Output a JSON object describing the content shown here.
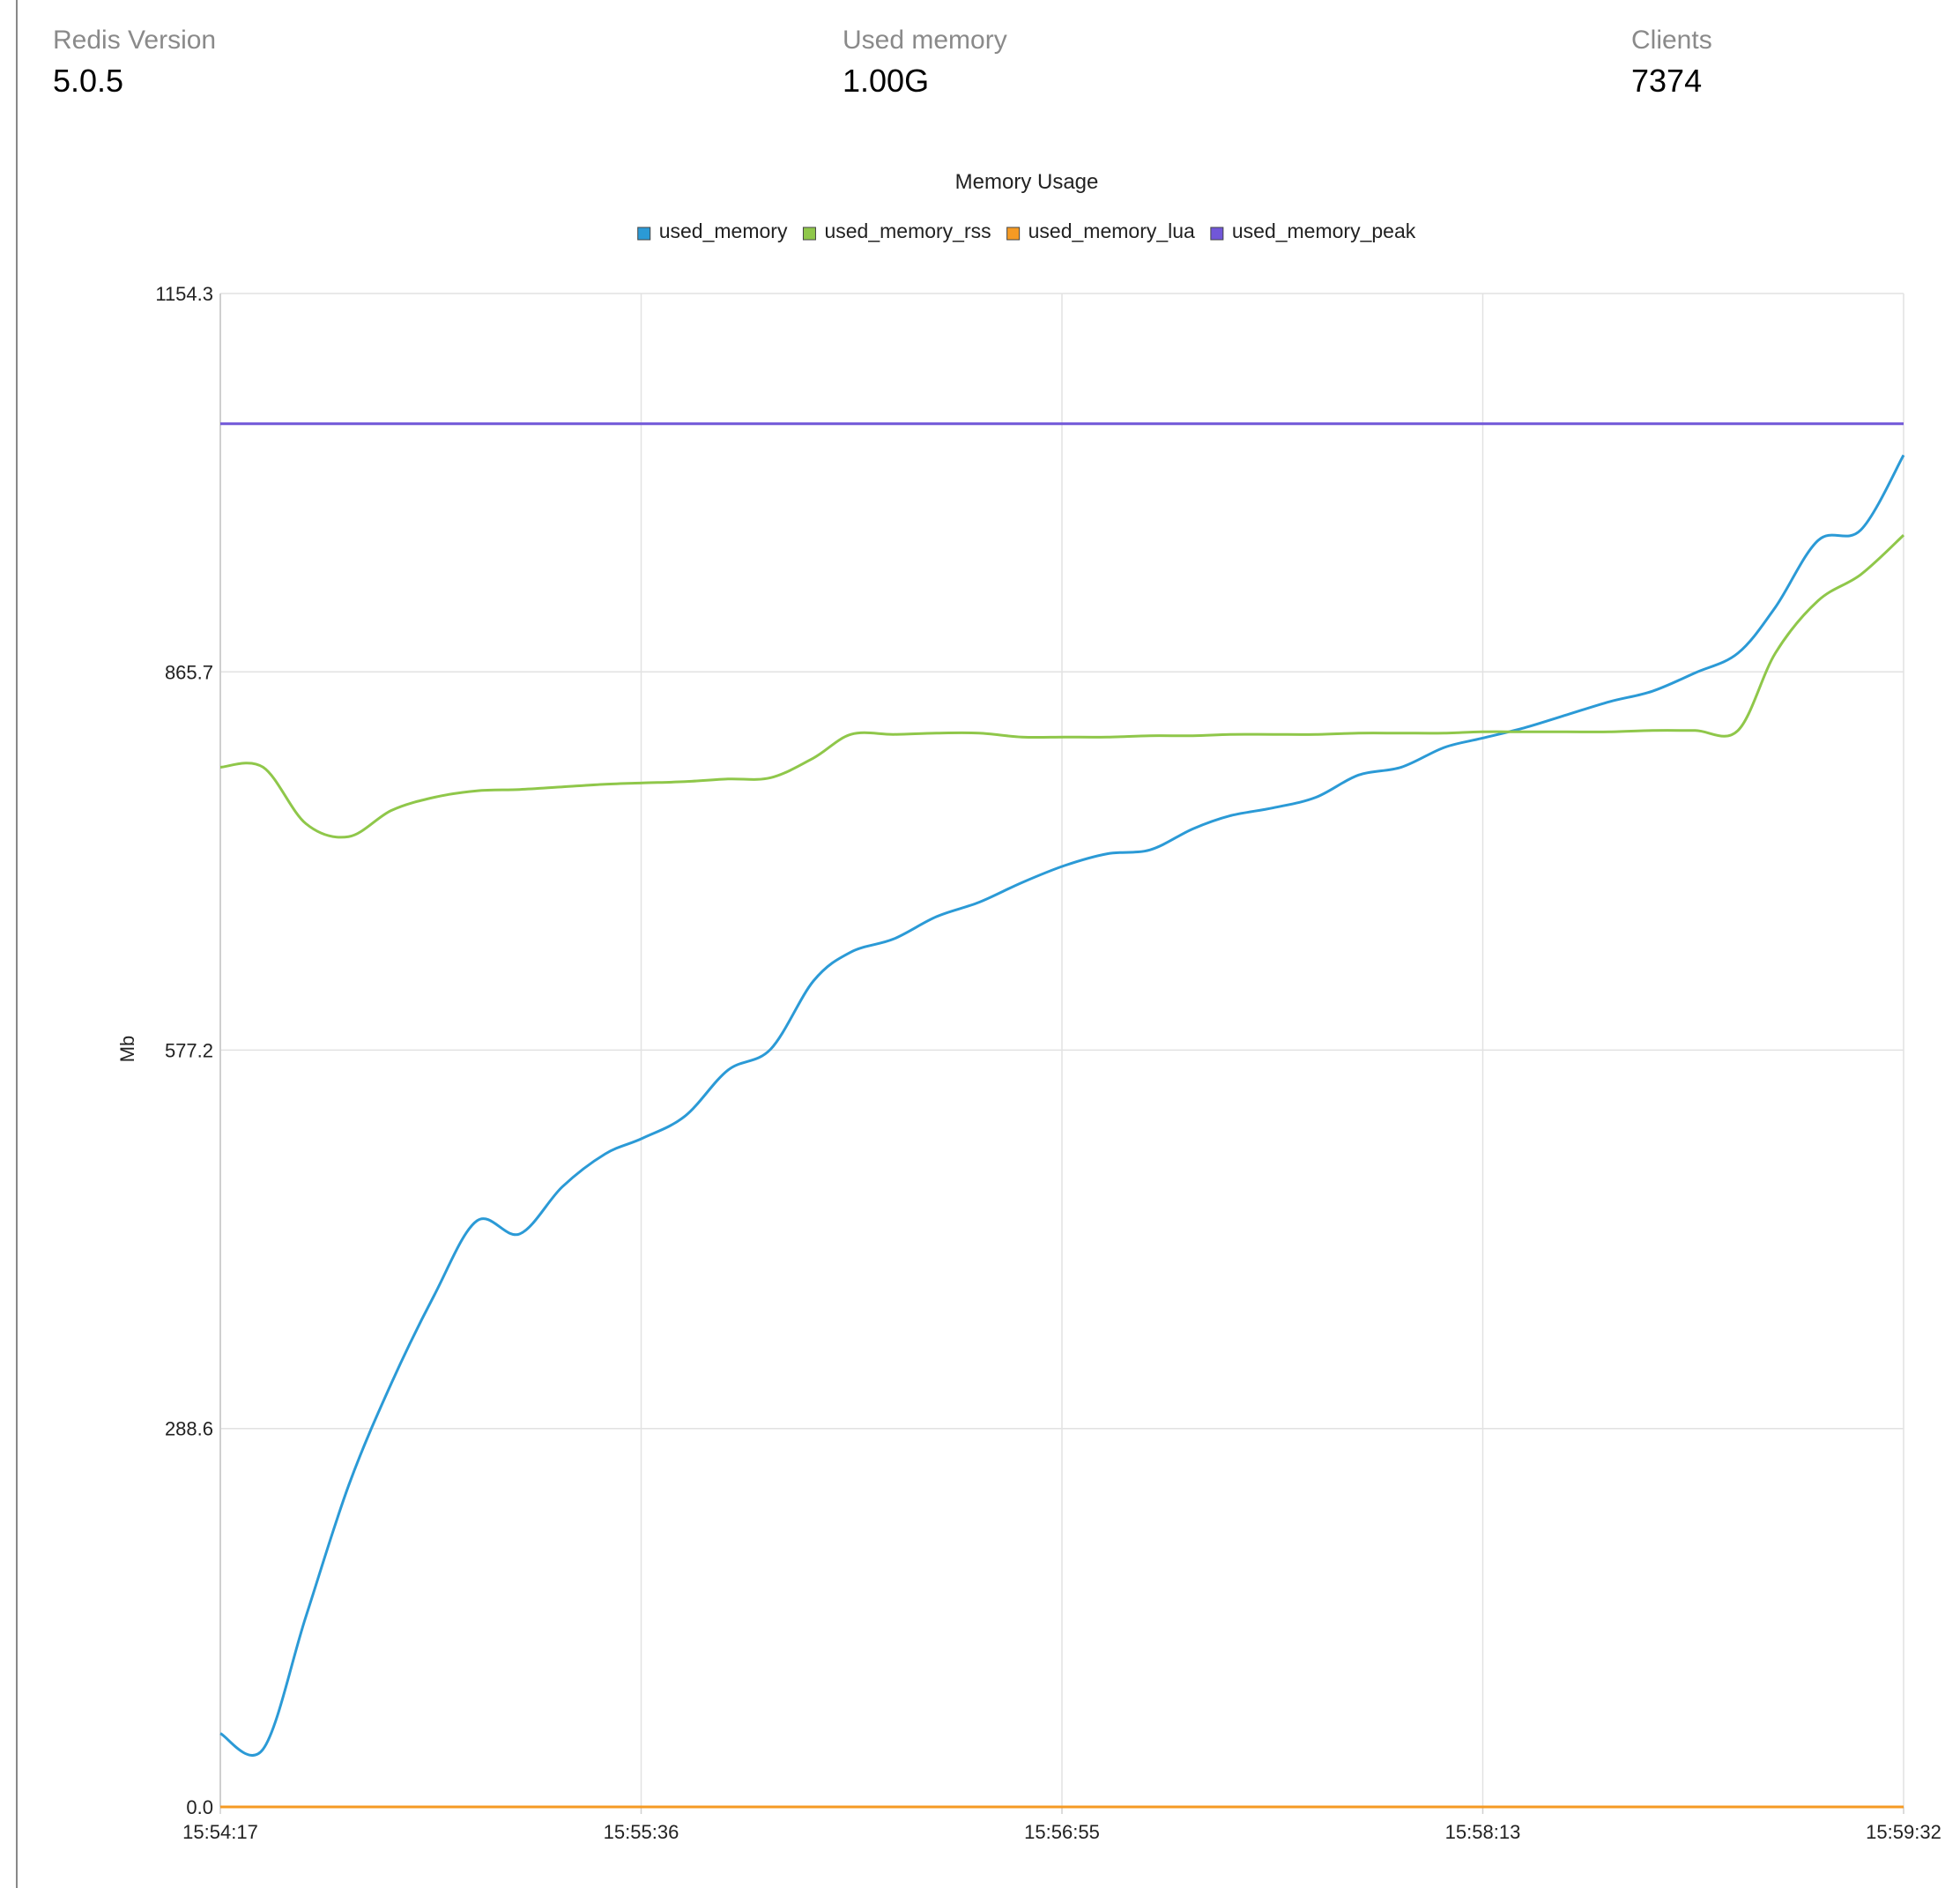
{
  "stats": [
    {
      "label": "Redis Version",
      "value": "5.0.5"
    },
    {
      "label": "Used memory",
      "value": "1.00G"
    },
    {
      "label": "Clients",
      "value": "7374"
    }
  ],
  "colors": {
    "used_memory": "#2b9ad6",
    "used_memory_rss": "#8fc74a",
    "used_memory_lua": "#f59a23",
    "used_memory_peak": "#7157d8",
    "grid": "#e2e2e2",
    "axis": "#cfcfcf"
  },
  "chart_data": {
    "type": "line",
    "title": "Memory Usage",
    "ylabel": "Mb",
    "xlabel": "",
    "ylim": [
      0,
      1154.3
    ],
    "yticks": [
      "1154.3",
      "865.7",
      "577.2",
      "288.6",
      "0.0"
    ],
    "xticks": [
      "15:54:17",
      "15:55:36",
      "15:56:55",
      "15:58:13",
      "15:59:32"
    ],
    "legend_position": "top-center",
    "grid": true,
    "x_seconds_from_start": [
      0,
      8,
      16,
      24,
      32,
      40,
      48,
      56,
      64,
      72,
      79,
      87,
      95,
      103,
      111,
      118,
      126,
      134,
      142,
      150,
      158,
      166,
      174,
      182,
      189,
      197,
      205,
      213,
      221,
      229,
      236,
      244,
      252,
      260,
      268,
      276,
      284,
      291,
      299,
      307,
      315
    ],
    "series": [
      {
        "name": "used_memory",
        "values": [
          56,
          44,
          145,
          245,
          323,
          390,
          447,
          437,
          473,
          498,
          510,
          527,
          562,
          578,
          630,
          652,
          662,
          679,
          690,
          705,
          718,
          727,
          730,
          746,
          756,
          762,
          770,
          787,
          793,
          808,
          815,
          823,
          833,
          843,
          851,
          865,
          880,
          915,
          966,
          974,
          1031
        ]
      },
      {
        "name": "used_memory_rss",
        "values": [
          793,
          793,
          750,
          740,
          760,
          770,
          775,
          776,
          778,
          780,
          781,
          782,
          784,
          785,
          800,
          818,
          818,
          819,
          819,
          816,
          816,
          816,
          817,
          817,
          818,
          818,
          818,
          819,
          819,
          819,
          820,
          820,
          820,
          820,
          821,
          821,
          821,
          880,
          920,
          940,
          970
        ]
      },
      {
        "name": "used_memory_lua",
        "values": [
          0,
          0,
          0,
          0,
          0,
          0,
          0,
          0,
          0,
          0,
          0,
          0,
          0,
          0,
          0,
          0,
          0,
          0,
          0,
          0,
          0,
          0,
          0,
          0,
          0,
          0,
          0,
          0,
          0,
          0,
          0,
          0,
          0,
          0,
          0,
          0,
          0,
          0,
          0,
          0,
          0
        ]
      },
      {
        "name": "used_memory_peak",
        "values": [
          1055,
          1055,
          1055,
          1055,
          1055,
          1055,
          1055,
          1055,
          1055,
          1055,
          1055,
          1055,
          1055,
          1055,
          1055,
          1055,
          1055,
          1055,
          1055,
          1055,
          1055,
          1055,
          1055,
          1055,
          1055,
          1055,
          1055,
          1055,
          1055,
          1055,
          1055,
          1055,
          1055,
          1055,
          1055,
          1055,
          1055,
          1055,
          1055,
          1055,
          1055
        ]
      }
    ]
  }
}
